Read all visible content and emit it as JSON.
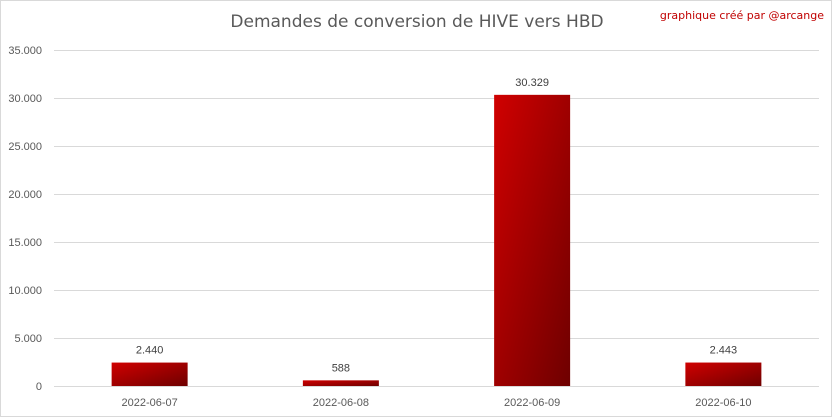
{
  "chart_data": {
    "type": "bar",
    "title": "Demandes de conversion de HIVE vers HBD",
    "credit": "graphique créé par @arcange",
    "categories": [
      "2022-06-07",
      "2022-06-08",
      "2022-06-09",
      "2022-06-10"
    ],
    "values": [
      2440,
      588,
      30329,
      2443
    ],
    "data_labels": [
      "2.440",
      "588",
      "30.329",
      "2.443"
    ],
    "xlabel": "",
    "ylabel": "",
    "ylim": [
      0,
      35000
    ],
    "yticks": [
      0,
      5000,
      10000,
      15000,
      20000,
      25000,
      30000,
      35000
    ],
    "ytick_labels": [
      "0",
      "5.000",
      "10.000",
      "15.000",
      "20.000",
      "25.000",
      "30.000",
      "35.000"
    ],
    "grid": true,
    "colors": {
      "bar_light": "#d00000",
      "bar_dark": "#6e0000",
      "credit": "#c00000"
    }
  }
}
